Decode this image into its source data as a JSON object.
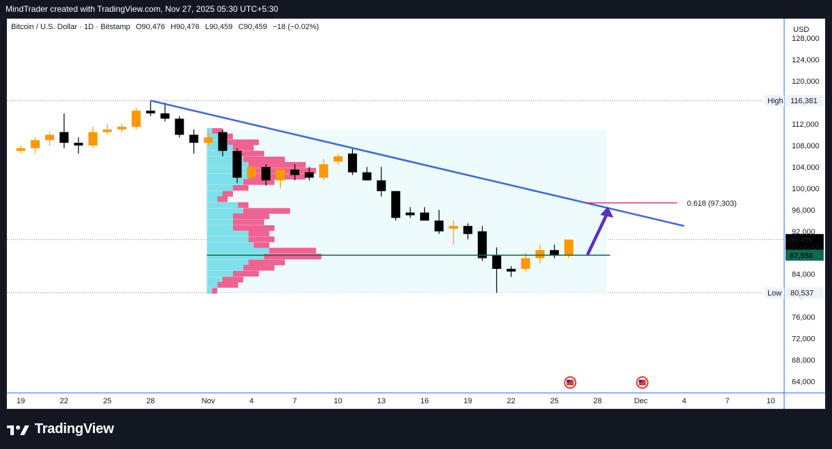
{
  "header": {
    "attribution": "MindTrader created with TradingView.com, Nov 27, 2025 05:30 UTC+5:30"
  },
  "legend": {
    "symbol": "Bitcoin / U.S. Dollar · 1D · Bitstamp",
    "open": "O90,476",
    "high": "H90,476",
    "low": "L90,459",
    "close": "C90,459",
    "change": "−18 (−0.02%)"
  },
  "brand": {
    "name": "TradingView"
  },
  "colors": {
    "up": "#ff9800",
    "down": "#000000",
    "trend": "#4169e1",
    "fib": "#e91e63",
    "poc": "#0b6b4f",
    "vp_up": "#7ee0ea",
    "vp_down": "#f06292",
    "arrow": "#5b2fbf"
  },
  "chart_data": {
    "type": "candlestick",
    "title": "Bitcoin / U.S. Dollar · 1D · Bitstamp",
    "currency": "USD",
    "y_range": [
      62000,
      131000
    ],
    "y_ticks": [
      "128,000",
      "124,000",
      "120,000",
      "116,000",
      "112,000",
      "108,000",
      "104,000",
      "100,000",
      "96,000",
      "92,000",
      "88,000",
      "84,000",
      "80,000",
      "76,000",
      "72,000",
      "68,000",
      "64,000"
    ],
    "x_ticks": [
      {
        "label": "19",
        "i": 0
      },
      {
        "label": "22",
        "i": 3
      },
      {
        "label": "25",
        "i": 6
      },
      {
        "label": "28",
        "i": 9
      },
      {
        "label": "Nov",
        "i": 13
      },
      {
        "label": "4",
        "i": 16
      },
      {
        "label": "7",
        "i": 19
      },
      {
        "label": "10",
        "i": 22
      },
      {
        "label": "13",
        "i": 25
      },
      {
        "label": "16",
        "i": 28
      },
      {
        "label": "19",
        "i": 31
      },
      {
        "label": "22",
        "i": 34
      },
      {
        "label": "25",
        "i": 37
      },
      {
        "label": "28",
        "i": 40
      },
      {
        "label": "Dec",
        "i": 43
      },
      {
        "label": "4",
        "i": 46
      },
      {
        "label": "7",
        "i": 49
      },
      {
        "label": "10",
        "i": 52
      }
    ],
    "candles": [
      {
        "o": 107000,
        "h": 108000,
        "l": 106500,
        "c": 107500
      },
      {
        "o": 107500,
        "h": 109500,
        "l": 106500,
        "c": 109000
      },
      {
        "o": 109000,
        "h": 110500,
        "l": 108000,
        "c": 110000
      },
      {
        "o": 110500,
        "h": 114000,
        "l": 107500,
        "c": 108500
      },
      {
        "o": 108500,
        "h": 109500,
        "l": 106500,
        "c": 108000
      },
      {
        "o": 108000,
        "h": 111500,
        "l": 107500,
        "c": 110500
      },
      {
        "o": 110500,
        "h": 112000,
        "l": 110000,
        "c": 111000
      },
      {
        "o": 111000,
        "h": 112000,
        "l": 110500,
        "c": 111500
      },
      {
        "o": 111500,
        "h": 115000,
        "l": 111000,
        "c": 114500
      },
      {
        "o": 114500,
        "h": 116381,
        "l": 113500,
        "c": 114000
      },
      {
        "o": 114000,
        "h": 116000,
        "l": 112500,
        "c": 113000
      },
      {
        "o": 113000,
        "h": 113500,
        "l": 109500,
        "c": 110000
      },
      {
        "o": 110000,
        "h": 111000,
        "l": 106500,
        "c": 108500
      },
      {
        "o": 108500,
        "h": 110500,
        "l": 108000,
        "c": 109500
      },
      {
        "o": 110500,
        "h": 111000,
        "l": 106000,
        "c": 107000
      },
      {
        "o": 107000,
        "h": 107500,
        "l": 101000,
        "c": 102000
      },
      {
        "o": 102000,
        "h": 104500,
        "l": 101500,
        "c": 104000
      },
      {
        "o": 104000,
        "h": 104500,
        "l": 100500,
        "c": 101500
      },
      {
        "o": 101500,
        "h": 104000,
        "l": 100000,
        "c": 103500
      },
      {
        "o": 103500,
        "h": 104500,
        "l": 101500,
        "c": 102500
      },
      {
        "o": 103000,
        "h": 104000,
        "l": 101500,
        "c": 102000
      },
      {
        "o": 102000,
        "h": 105500,
        "l": 101500,
        "c": 104500
      },
      {
        "o": 105000,
        "h": 106500,
        "l": 104500,
        "c": 106000
      },
      {
        "o": 106500,
        "h": 107500,
        "l": 102500,
        "c": 103000
      },
      {
        "o": 103000,
        "h": 104000,
        "l": 101500,
        "c": 101500
      },
      {
        "o": 101500,
        "h": 104000,
        "l": 98500,
        "c": 99500
      },
      {
        "o": 99500,
        "h": 99500,
        "l": 94000,
        "c": 94500
      },
      {
        "o": 95500,
        "h": 96500,
        "l": 94500,
        "c": 95000
      },
      {
        "o": 95500,
        "h": 96500,
        "l": 94000,
        "c": 94000
      },
      {
        "o": 94000,
        "h": 96000,
        "l": 91500,
        "c": 92000
      },
      {
        "o": 92500,
        "h": 94000,
        "l": 89500,
        "c": 93000
      },
      {
        "o": 93000,
        "h": 93500,
        "l": 90500,
        "c": 91500
      },
      {
        "o": 92000,
        "h": 93000,
        "l": 86500,
        "c": 87000
      },
      {
        "o": 87500,
        "h": 89000,
        "l": 80537,
        "c": 85000
      },
      {
        "o": 85000,
        "h": 85500,
        "l": 83500,
        "c": 84500
      },
      {
        "o": 85000,
        "h": 88000,
        "l": 84500,
        "c": 87000
      },
      {
        "o": 87000,
        "h": 89500,
        "l": 86000,
        "c": 88500
      },
      {
        "o": 88500,
        "h": 89500,
        "l": 87000,
        "c": 87500
      },
      {
        "o": 87500,
        "h": 90476,
        "l": 87000,
        "c": 90459
      }
    ],
    "volume_profile": [
      {
        "p": 110700,
        "a": 1,
        "b": 2
      },
      {
        "p": 109700,
        "a": 3,
        "b": 2
      },
      {
        "p": 108600,
        "a": 4,
        "b": 6
      },
      {
        "p": 107600,
        "a": 5,
        "b": 4
      },
      {
        "p": 106500,
        "a": 6,
        "b": 5
      },
      {
        "p": 105400,
        "a": 7,
        "b": 8
      },
      {
        "p": 104400,
        "a": 8,
        "b": 11
      },
      {
        "p": 103300,
        "a": 9,
        "b": 12
      },
      {
        "p": 102200,
        "a": 8,
        "b": 11
      },
      {
        "p": 101200,
        "a": 7,
        "b": 6
      },
      {
        "p": 100100,
        "a": 5,
        "b": 3
      },
      {
        "p": 99000,
        "a": 3,
        "b": 2
      },
      {
        "p": 98000,
        "a": 2,
        "b": 2
      },
      {
        "p": 96900,
        "a": 6,
        "b": 2
      },
      {
        "p": 95800,
        "a": 7,
        "b": 9
      },
      {
        "p": 94800,
        "a": 5,
        "b": 7
      },
      {
        "p": 93700,
        "a": 5,
        "b": 6
      },
      {
        "p": 92600,
        "a": 5,
        "b": 8
      },
      {
        "p": 91600,
        "a": 8,
        "b": 4
      },
      {
        "p": 90500,
        "a": 8,
        "b": 5
      },
      {
        "p": 89400,
        "a": 9,
        "b": 3
      },
      {
        "p": 88400,
        "a": 12,
        "b": 9
      },
      {
        "p": 87300,
        "a": 11,
        "b": 11
      },
      {
        "p": 86200,
        "a": 8,
        "b": 7
      },
      {
        "p": 85200,
        "a": 7,
        "b": 6
      },
      {
        "p": 84100,
        "a": 5,
        "b": 5
      },
      {
        "p": 83000,
        "a": 3,
        "b": 4
      },
      {
        "p": 82000,
        "a": 2,
        "b": 4
      },
      {
        "p": 80900,
        "a": 1,
        "b": 1
      }
    ],
    "high": {
      "label": "High",
      "value": 116381,
      "text": "116,381"
    },
    "low": {
      "label": "Low",
      "value": 80537,
      "text": "80,537"
    },
    "current": {
      "value": 90459,
      "text": "90,459",
      "countdown": "23:59:58"
    },
    "poc": {
      "value": 87550,
      "text": "87,550"
    },
    "fib": {
      "label": "0.618 (97,303)",
      "value": 97303
    },
    "trendline": {
      "from": {
        "i": 9,
        "p": 116381
      },
      "to": {
        "i": 46,
        "p": 93000
      }
    },
    "profile_range": {
      "i_from": 13,
      "i_to": 40,
      "p_from": 80537,
      "p_to": 111000
    },
    "event_markers": [
      {
        "i": 38
      },
      {
        "i": 43
      }
    ]
  }
}
